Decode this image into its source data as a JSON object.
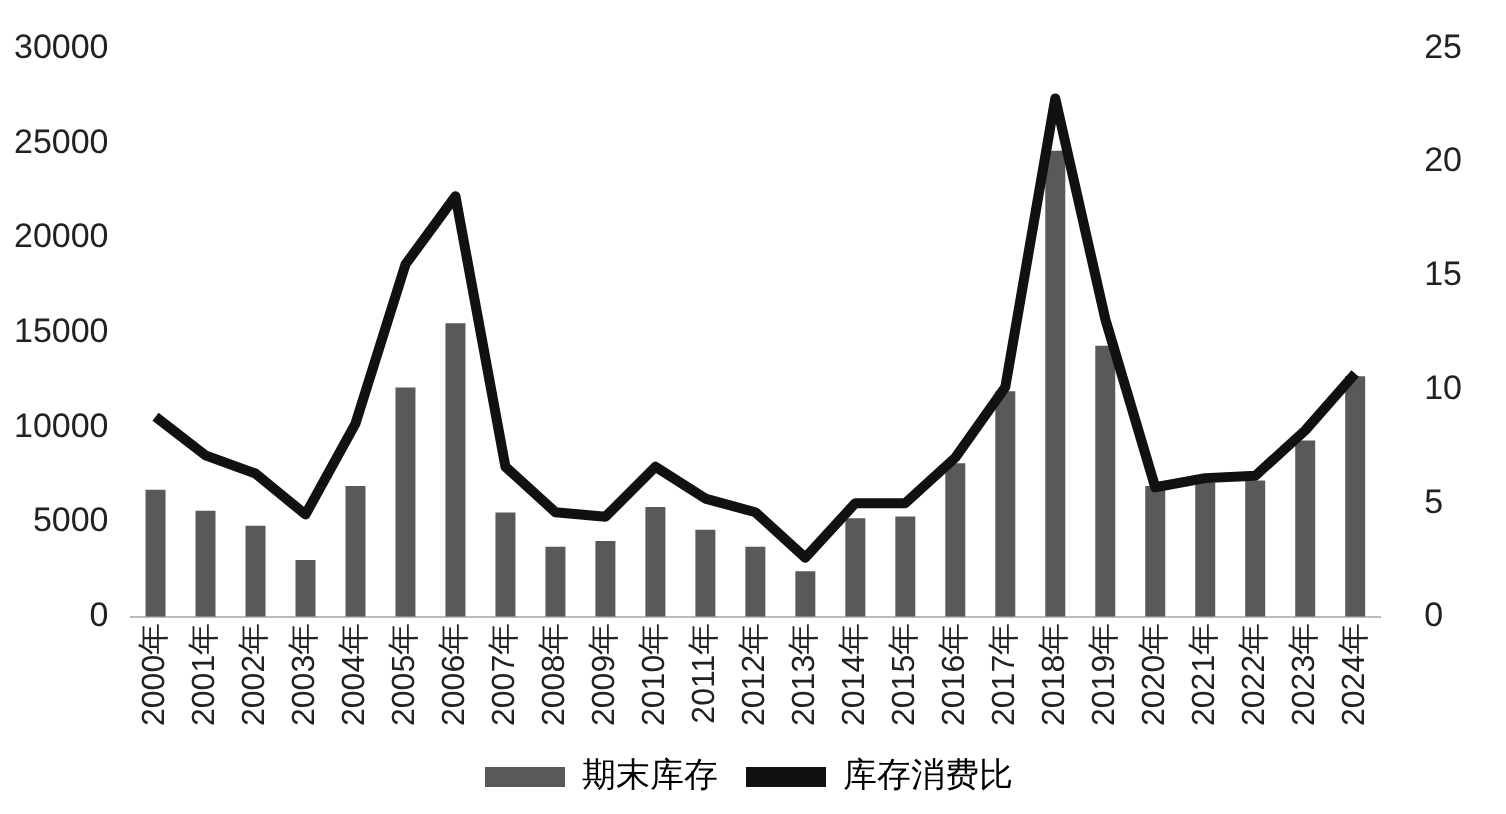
{
  "chart_data": {
    "type": "bar",
    "categories": [
      "2000年",
      "2001年",
      "2002年",
      "2003年",
      "2004年",
      "2005年",
      "2006年",
      "2007年",
      "2008年",
      "2009年",
      "2010年",
      "2011年",
      "2012年",
      "2013年",
      "2014年",
      "2015年",
      "2016年",
      "2017年",
      "2018年",
      "2019年",
      "2020年",
      "2021年",
      "2022年",
      "2023年",
      "2024年"
    ],
    "series": [
      {
        "name": "期末库存",
        "color": "#595959",
        "values": [
          6700,
          5600,
          4800,
          3000,
          6900,
          12100,
          15500,
          5500,
          3700,
          4000,
          5800,
          4600,
          3700,
          2400,
          5200,
          5300,
          8100,
          11900,
          24600,
          14300,
          6900,
          7100,
          7200,
          9300,
          12700
        ]
      },
      {
        "name": "库存消费比",
        "type": "line",
        "axis": "y2",
        "color": "#111111",
        "values": [
          8.8,
          7.1,
          6.3,
          4.5,
          8.5,
          15.5,
          18.5,
          6.6,
          4.6,
          4.4,
          6.6,
          5.2,
          4.6,
          2.6,
          5.0,
          5.0,
          7.0,
          10.1,
          22.8,
          13.1,
          5.7,
          6.1,
          6.2,
          8.2,
          10.7
        ]
      }
    ],
    "ylim": [
      0,
      30000
    ],
    "yticks": [
      0,
      5000,
      10000,
      15000,
      20000,
      25000,
      30000
    ],
    "y2lim": [
      0,
      25
    ],
    "y2ticks": [
      0,
      5,
      10,
      15,
      20,
      25
    ],
    "grid": false,
    "legend": "bottom",
    "marker": "none",
    "line_style": "solid"
  }
}
